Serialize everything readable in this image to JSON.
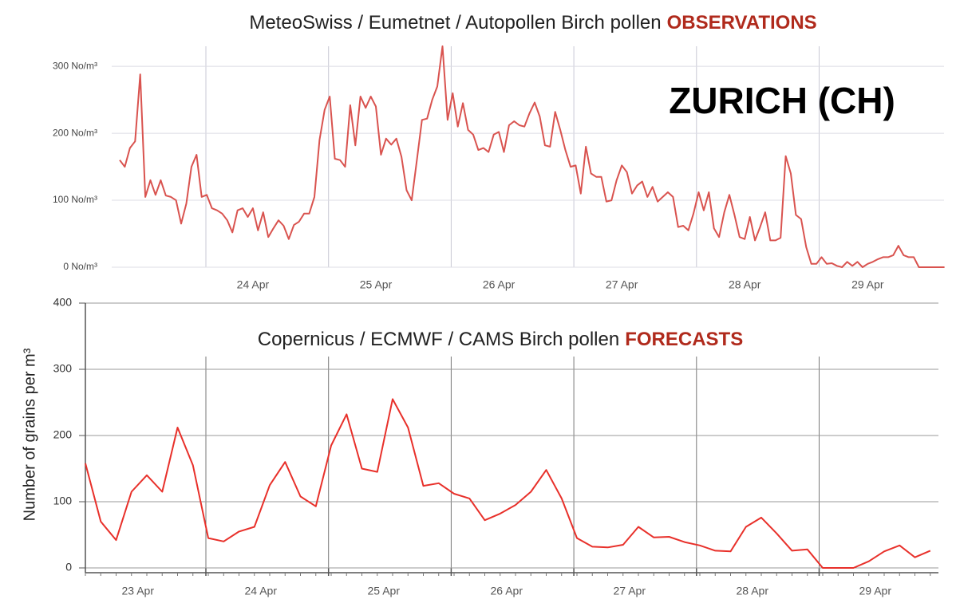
{
  "chart_data": [
    {
      "type": "line",
      "title": "MeteoSwiss / Eumetnet / Autopollen Birch pollen",
      "title_emphasis": "OBSERVATIONS",
      "annotation": "ZURICH (CH)",
      "color": "#d9534f",
      "ylim": [
        0,
        330
      ],
      "yticks": [
        {
          "value": 0,
          "label": "0 No/m³"
        },
        {
          "value": 100,
          "label": "100 No/m³"
        },
        {
          "value": 200,
          "label": "200 No/m³"
        },
        {
          "value": 300,
          "label": "300 No/m³"
        }
      ],
      "grid": true,
      "categories": [
        null,
        null,
        null,
        null,
        null,
        null,
        null,
        null,
        null,
        null,
        null,
        null,
        null,
        null,
        null,
        null,
        null,
        null,
        null,
        null,
        null,
        null,
        null,
        null,
        null,
        null,
        "24 Apr",
        null,
        null,
        null,
        null,
        null,
        null,
        null,
        null,
        null,
        null,
        null,
        null,
        null,
        null,
        null,
        null,
        null,
        null,
        null,
        null,
        null,
        null,
        null,
        "25 Apr",
        null,
        null,
        null,
        null,
        null,
        null,
        null,
        null,
        null,
        null,
        null,
        null,
        null,
        null,
        null,
        null,
        null,
        null,
        null,
        null,
        null,
        null,
        null,
        "26 Apr",
        null,
        null,
        null,
        null,
        null,
        null,
        null,
        null,
        null,
        null,
        null,
        null,
        null,
        null,
        null,
        null,
        null,
        null,
        null,
        null,
        null,
        null,
        null,
        "27 Apr",
        null,
        null,
        null,
        null,
        null,
        null,
        null,
        null,
        null,
        null,
        null,
        null,
        null,
        null,
        null,
        null,
        null,
        null,
        null,
        null,
        null,
        null,
        null,
        "28 Apr",
        null,
        null,
        null,
        null,
        null,
        null,
        null,
        null,
        null,
        null,
        null,
        null,
        null,
        null,
        null,
        null,
        null,
        null,
        null,
        null,
        null,
        null,
        null,
        "29 Apr",
        null,
        null,
        null,
        null,
        null,
        null,
        null,
        null,
        null,
        null,
        null,
        null,
        null,
        null,
        null
      ],
      "values": [
        160,
        150,
        178,
        188,
        288,
        105,
        130,
        108,
        130,
        107,
        105,
        100,
        65,
        95,
        150,
        168,
        105,
        108,
        88,
        85,
        80,
        70,
        52,
        85,
        88,
        75,
        88,
        55,
        82,
        45,
        58,
        70,
        62,
        42,
        63,
        68,
        80,
        80,
        105,
        190,
        235,
        255,
        162,
        160,
        150,
        242,
        182,
        255,
        238,
        255,
        240,
        168,
        192,
        183,
        192,
        165,
        115,
        100,
        160,
        220,
        222,
        250,
        270,
        330,
        220,
        260,
        210,
        245,
        205,
        198,
        175,
        178,
        172,
        198,
        202,
        172,
        212,
        218,
        212,
        210,
        230,
        246,
        225,
        182,
        180,
        232,
        205,
        175,
        150,
        152,
        110,
        180,
        140,
        135,
        135,
        98,
        100,
        130,
        152,
        142,
        110,
        122,
        128,
        105,
        120,
        98,
        105,
        112,
        105,
        60,
        62,
        55,
        80,
        112,
        85,
        112,
        58,
        45,
        82,
        108,
        78,
        45,
        42,
        75,
        40,
        60,
        82,
        40,
        40,
        44,
        166,
        140,
        78,
        72,
        30,
        5,
        5,
        15,
        5,
        6,
        2,
        0,
        8,
        2,
        8,
        0,
        5,
        8,
        12,
        15,
        15,
        18,
        32,
        18,
        15,
        15,
        0,
        0,
        0,
        0,
        0,
        0
      ]
    },
    {
      "type": "line",
      "title": "Copernicus / ECMWF / CAMS Birch pollen",
      "title_emphasis": "FORECASTS",
      "ylabel": "Number of grains per m³",
      "color": "#e8302a",
      "ylim": [
        0,
        400
      ],
      "yticks": [
        0,
        100,
        200,
        300,
        400
      ],
      "grid": true,
      "categories": [
        null,
        null,
        null,
        "23 Apr",
        null,
        null,
        null,
        null,
        null,
        null,
        null,
        "24 Apr",
        null,
        null,
        null,
        null,
        null,
        null,
        null,
        "25 Apr",
        null,
        null,
        null,
        null,
        null,
        null,
        null,
        "26 Apr",
        null,
        null,
        null,
        null,
        null,
        null,
        null,
        "27 Apr",
        null,
        null,
        null,
        null,
        null,
        null,
        null,
        "28 Apr",
        null,
        null,
        null,
        null,
        null,
        null,
        null,
        "29 Apr",
        null,
        null,
        null,
        null
      ],
      "values": [
        158,
        70,
        42,
        115,
        140,
        115,
        212,
        155,
        45,
        40,
        55,
        62,
        125,
        160,
        108,
        93,
        185,
        232,
        150,
        145,
        255,
        212,
        124,
        128,
        112,
        105,
        72,
        82,
        95,
        115,
        148,
        105,
        45,
        32,
        31,
        35,
        62,
        46,
        47,
        39,
        34,
        26,
        25,
        62,
        76,
        52,
        26,
        28,
        0,
        0,
        0,
        10,
        25,
        34,
        16,
        26
      ]
    }
  ]
}
